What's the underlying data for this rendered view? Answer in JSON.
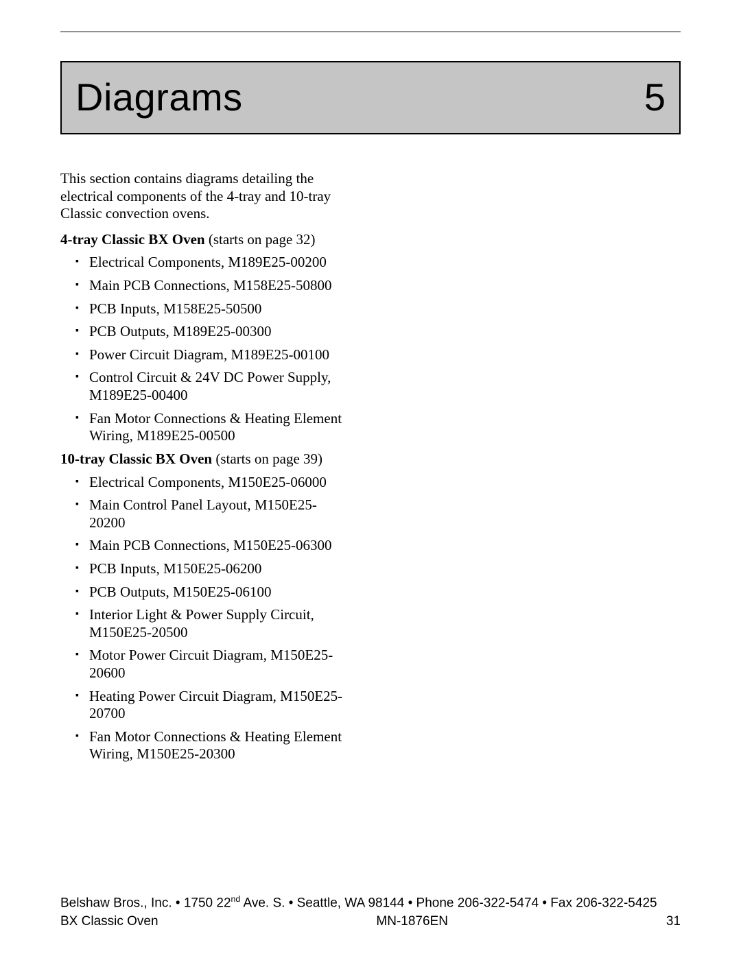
{
  "chapter": {
    "title": "Diagrams",
    "number": "5"
  },
  "intro": "This section contains diagrams detailing the electrical components of the 4-tray and 10-tray Classic convection ovens.",
  "sections": [
    {
      "heading_bold": "4-tray Classic BX Oven",
      "heading_rest": " (starts on page 32)",
      "items": [
        "Electrical Components, M189E25-00200",
        "Main PCB Connections, M158E25-50800",
        "PCB Inputs, M158E25-50500",
        "PCB Outputs, M189E25-00300",
        "Power Circuit Diagram, M189E25-00100",
        "Control Circuit & 24V DC Power Supply, M189E25-00400",
        "Fan Motor Connections & Heating Element Wiring, M189E25-00500"
      ]
    },
    {
      "heading_bold": "10-tray Classic BX Oven",
      "heading_rest": " (starts on page 39)",
      "items": [
        "Electrical Components, M150E25-06000",
        "Main Control Panel Layout, M150E25-20200",
        "Main PCB Connections, M150E25-06300",
        "PCB Inputs, M150E25-06200",
        "PCB Outputs, M150E25-06100",
        "Interior Light & Power Supply Circuit, M150E25-20500",
        "Motor Power Circuit Diagram, M150E25-20600",
        "Heating Power Circuit Diagram, M150E25-20700",
        "Fan Motor Connections & Heating Element Wiring, M150E25-20300"
      ]
    }
  ],
  "footer": {
    "company": "Belshaw Bros., Inc.",
    "street_num": "1750 22",
    "street_sup": "nd",
    "street_rest": " Ave. S.",
    "city": "Seattle, WA 98144",
    "phone": "Phone 206-322-5474",
    "fax": "Fax 206-322-5425",
    "product": "BX Classic Oven",
    "doc": "MN-1876EN",
    "page": "31",
    "bullet": "•"
  }
}
